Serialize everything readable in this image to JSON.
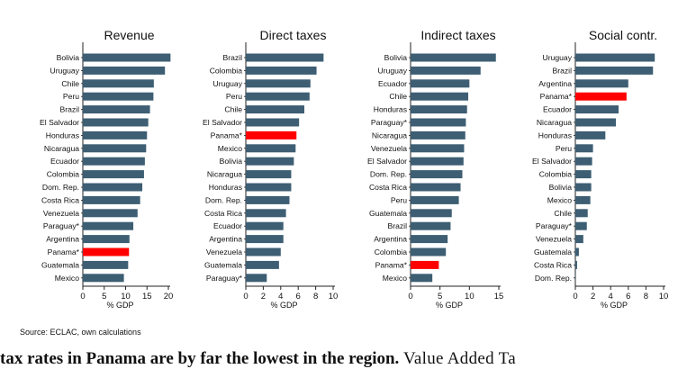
{
  "colors": {
    "bar": "#3d5e73",
    "highlight": "#ff0000",
    "axis": "#222222"
  },
  "chart_data": [
    {
      "type": "bar",
      "orientation": "horizontal",
      "title": "Revenue",
      "xlabel": "% GDP",
      "xlim": [
        0,
        20
      ],
      "ticks": [
        0,
        5,
        10,
        15,
        20
      ],
      "highlight": "Panama*",
      "categories": [
        "Bolivia",
        "Uruguay",
        "Chile",
        "Peru",
        "Brazil",
        "El Salvador",
        "Honduras",
        "Nicaragua",
        "Ecuador",
        "Colombia",
        "Dom. Rep.",
        "Costa Rica",
        "Venezuela",
        "Paraguay*",
        "Argentina",
        "Panama*",
        "Guatemala",
        "Mexico"
      ],
      "values": [
        20.5,
        19.2,
        16.6,
        16.5,
        15.7,
        15.3,
        15.0,
        14.8,
        14.5,
        14.3,
        13.9,
        13.4,
        12.8,
        11.8,
        10.9,
        10.8,
        10.6,
        9.6
      ]
    },
    {
      "type": "bar",
      "orientation": "horizontal",
      "title": "Direct taxes",
      "xlabel": "% GDP",
      "xlim": [
        0,
        10
      ],
      "ticks": [
        0,
        2,
        4,
        6,
        8,
        10
      ],
      "highlight": "Panama*",
      "categories": [
        "Brazil",
        "Colombia",
        "Uruguay",
        "Peru",
        "Chile",
        "El Salvador",
        "Panama*",
        "Mexico",
        "Bolivia",
        "Nicaragua",
        "Honduras",
        "Dom. Rep.",
        "Costa Rica",
        "Ecuador",
        "Argentina",
        "Venezuela",
        "Guatemala",
        "Paraguay*"
      ],
      "values": [
        8.9,
        8.1,
        7.4,
        7.3,
        6.7,
        6.1,
        5.8,
        5.7,
        5.5,
        5.2,
        5.2,
        5.0,
        4.6,
        4.3,
        4.3,
        4.0,
        3.8,
        2.4
      ]
    },
    {
      "type": "bar",
      "orientation": "horizontal",
      "title": "Indirect taxes",
      "xlabel": "% GDP",
      "xlim": [
        0,
        15
      ],
      "ticks": [
        0,
        5,
        10,
        15
      ],
      "highlight": "Panama*",
      "categories": [
        "Bolivia",
        "Uruguay",
        "Ecuador",
        "Chile",
        "Honduras",
        "Paraguay*",
        "Nicaragua",
        "Venezuela",
        "El Salvador",
        "Dom. Rep.",
        "Costa Rica",
        "Peru",
        "Guatemala",
        "Brazil",
        "Argentina",
        "Colombia",
        "Panama*",
        "Mexico"
      ],
      "values": [
        14.5,
        11.9,
        10.0,
        9.8,
        9.6,
        9.4,
        9.3,
        9.1,
        9.0,
        8.8,
        8.5,
        8.2,
        7.0,
        6.8,
        6.3,
        6.0,
        4.8,
        3.7
      ]
    },
    {
      "type": "bar",
      "orientation": "horizontal",
      "title": "Social contr.",
      "xlabel": "% GDP",
      "xlim": [
        0,
        10
      ],
      "ticks": [
        0,
        2,
        4,
        6,
        8,
        10
      ],
      "highlight": "Panama*",
      "categories": [
        "Uruguay",
        "Brazil",
        "Argentina",
        "Panama*",
        "Ecuador",
        "Nicaragua",
        "Honduras",
        "Peru",
        "El Salvador",
        "Colombia",
        "Bolivia",
        "Mexico",
        "Chile",
        "Paraguay*",
        "Venezuela",
        "Guatemala",
        "Costa Rica",
        "Dom. Rep."
      ],
      "values": [
        9.0,
        8.8,
        6.0,
        5.8,
        4.9,
        4.6,
        3.4,
        2.0,
        1.9,
        1.8,
        1.8,
        1.7,
        1.4,
        1.3,
        0.9,
        0.4,
        0.2,
        0.05
      ]
    }
  ],
  "source": "Source: ECLAC, own calculations",
  "bottom_text": {
    "bold": "tax rates in Panama are by far the lowest in the region.",
    "normal": " Value Added Ta"
  }
}
